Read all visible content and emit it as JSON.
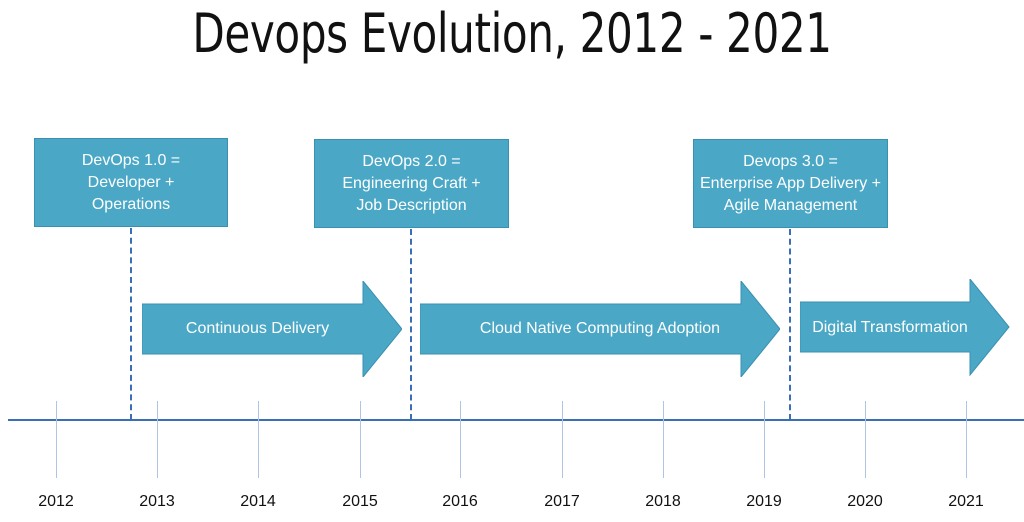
{
  "title": "Devops Evolution, 2012 - 2021",
  "milestones": [
    {
      "lines": [
        "DevOps 1.0 =",
        "Developer +",
        "Operations"
      ]
    },
    {
      "lines": [
        "DevOps 2.0 =",
        "Engineering Craft +",
        "Job Description"
      ]
    },
    {
      "lines": [
        "Devops 3.0 =",
        "Enterprise App Delivery +",
        "Agile Management"
      ]
    }
  ],
  "phases": [
    {
      "label": "Continuous Delivery"
    },
    {
      "label": "Cloud Native Computing Adoption"
    },
    {
      "label": "Digital Transformation"
    }
  ],
  "years": [
    "2012",
    "2013",
    "2014",
    "2015",
    "2016",
    "2017",
    "2018",
    "2019",
    "2020",
    "2021"
  ],
  "colors": {
    "box_fill": "#4aa8c6",
    "arrow_fill": "#4aa8c6",
    "axis": "#3a6fb7",
    "tick": "#aec6e4"
  }
}
